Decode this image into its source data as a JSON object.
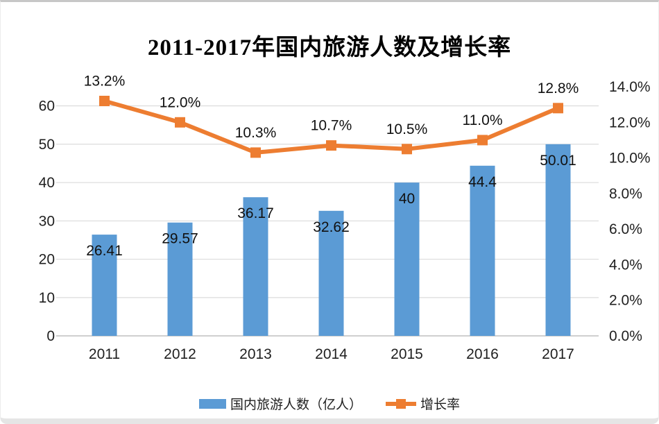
{
  "title": "2011-2017年国内旅游人数及增长率",
  "chart_data": {
    "type": "combo-bar-line",
    "title": "2011-2017年国内旅游人数及增长率",
    "categories": [
      "2011",
      "2012",
      "2013",
      "2014",
      "2015",
      "2016",
      "2017"
    ],
    "series": [
      {
        "name": "国内旅游人数（亿人）",
        "type": "bar",
        "axis": "left",
        "values": [
          26.41,
          29.57,
          36.17,
          32.62,
          40,
          44.4,
          50.01
        ],
        "labels": [
          "26.41",
          "29.57",
          "36.17",
          "32.62",
          "40",
          "44.4",
          "50.01"
        ]
      },
      {
        "name": "增长率",
        "type": "line",
        "axis": "right",
        "values": [
          13.2,
          12.0,
          10.3,
          10.7,
          10.5,
          11.0,
          12.8
        ],
        "labels": [
          "13.2%",
          "12.0%",
          "10.3%",
          "10.7%",
          "10.5%",
          "11.0%",
          "12.8%"
        ]
      }
    ],
    "left_axis": {
      "min": 0,
      "max": 65,
      "tick_values": [
        0,
        10,
        20,
        30,
        40,
        50,
        60
      ],
      "ticks": [
        "0",
        "10",
        "20",
        "30",
        "40",
        "50",
        "60"
      ]
    },
    "right_axis": {
      "min": 0,
      "max": 14,
      "tick_values": [
        0,
        2,
        4,
        6,
        8,
        10,
        12,
        14
      ],
      "ticks": [
        "0.0%",
        "2.0%",
        "4.0%",
        "6.0%",
        "8.0%",
        "10.0%",
        "12.0%",
        "14.0%"
      ]
    },
    "grid": true,
    "legend_position": "bottom"
  },
  "legend": {
    "items": [
      {
        "label": "国内旅游人数（亿人）",
        "swatch": "bar"
      },
      {
        "label": "增长率",
        "swatch": "line-marker"
      }
    ]
  },
  "colors": {
    "bar": "#5B9BD5",
    "line": "#ED7D31",
    "gridline": "#D9D9D9",
    "axis_line": "#BFBFBF",
    "text": "#1f1f1f",
    "label_text": "#111111",
    "background": "#FFFFFF"
  }
}
